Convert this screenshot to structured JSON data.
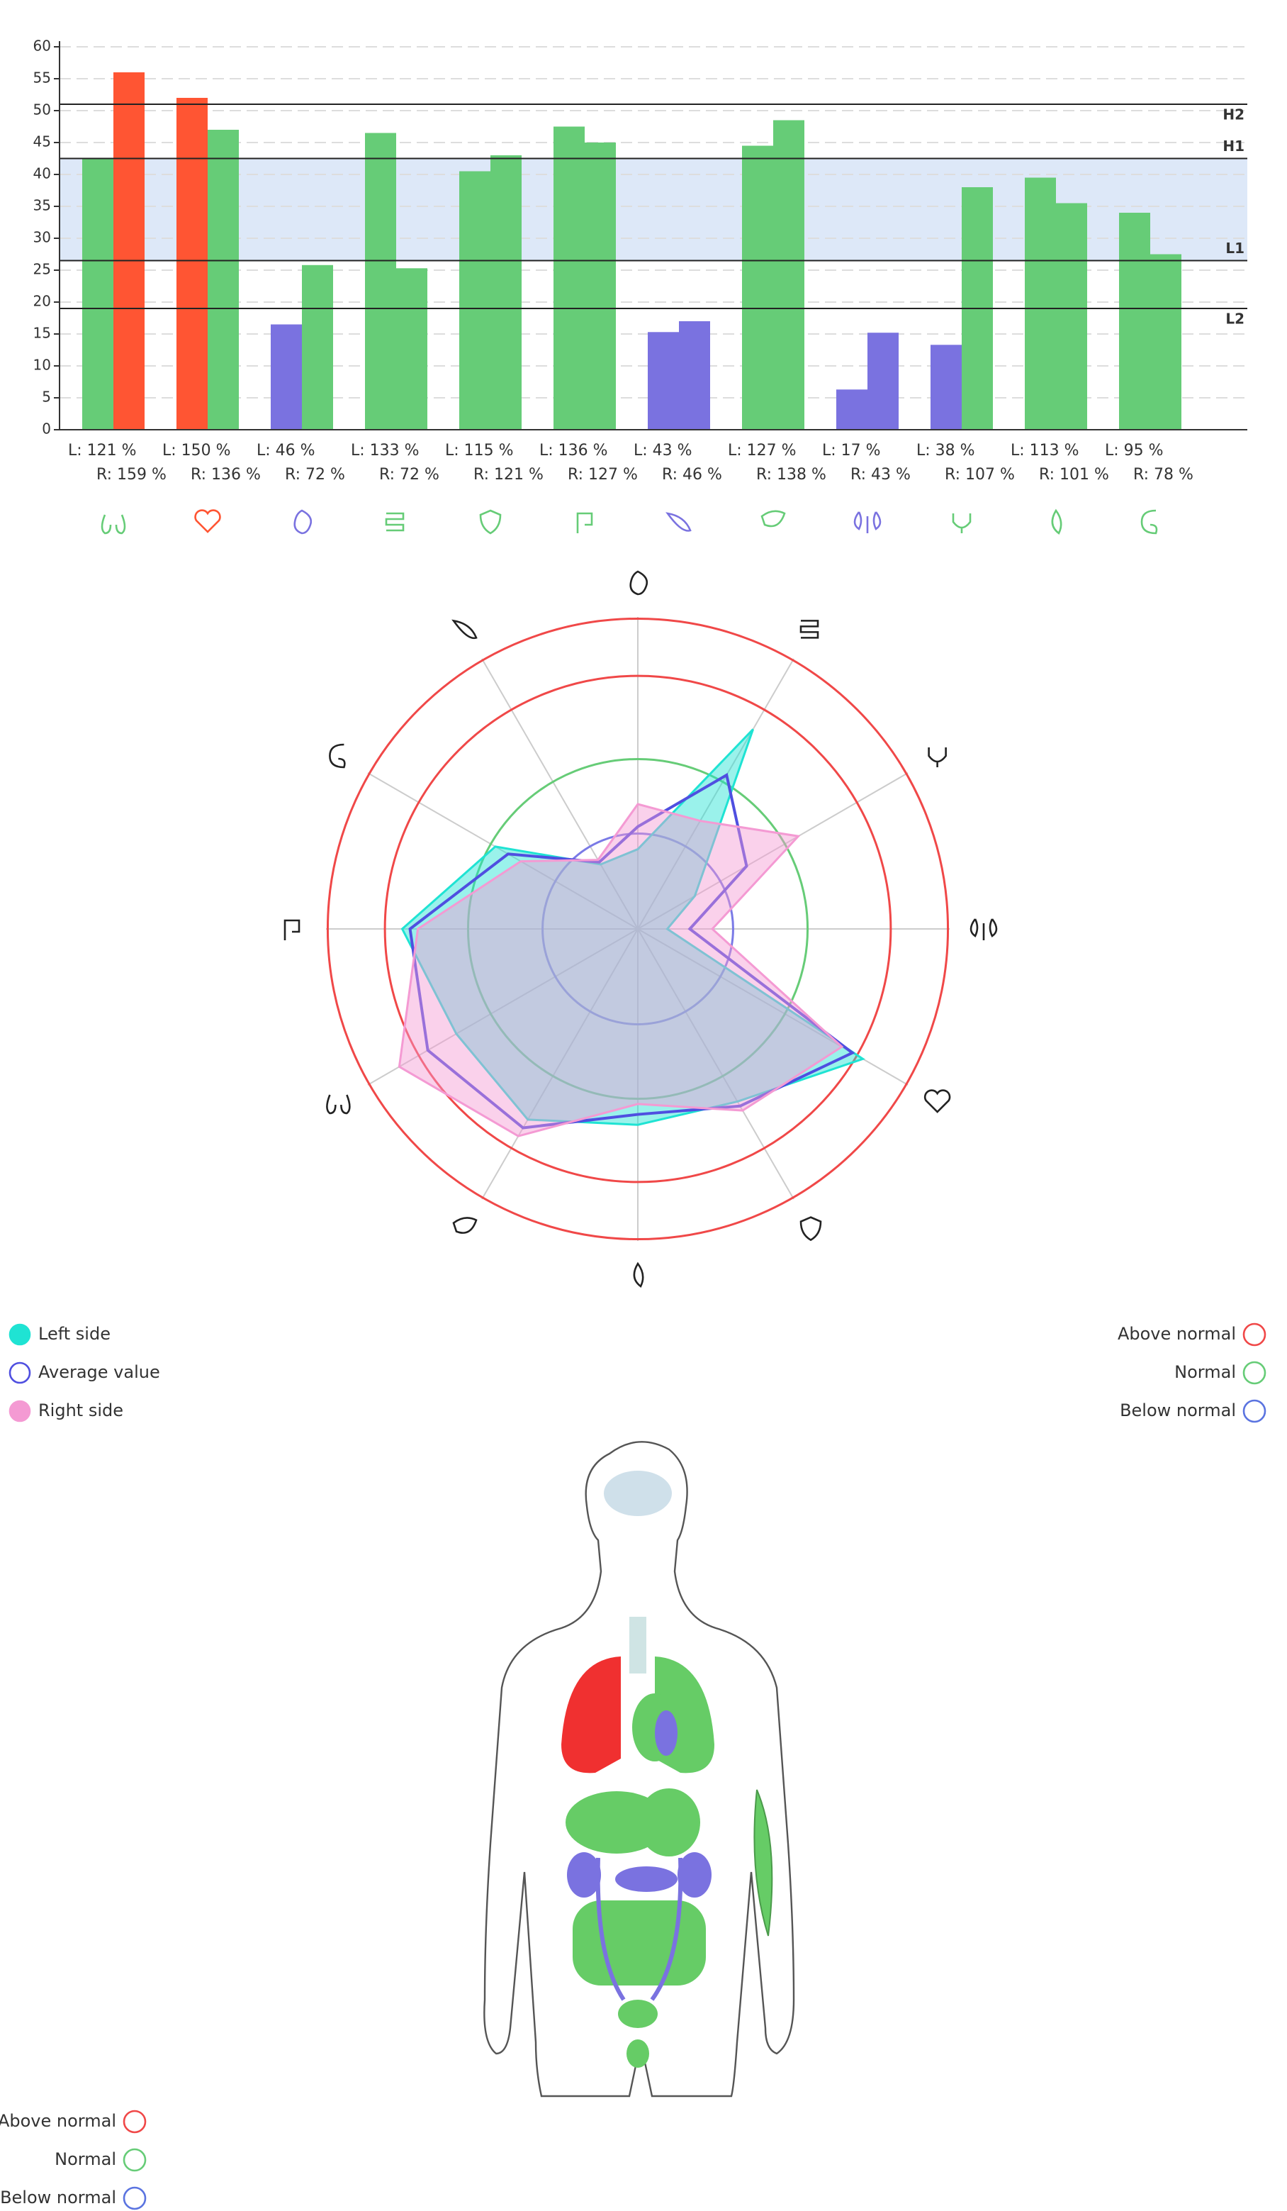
{
  "chart_data": [
    {
      "type": "bar",
      "ylim": [
        0,
        60
      ],
      "yticks": [
        0,
        5,
        10,
        15,
        20,
        25,
        30,
        35,
        40,
        45,
        50,
        55,
        60
      ],
      "grid": true,
      "series": [
        {
          "values": [
            42.5,
            52,
            16.5,
            46.5,
            40.5,
            47.5,
            15.3,
            44.5,
            6.3,
            13.3,
            39.5,
            34
          ],
          "colors": [
            "#66cc77",
            "#ff5533",
            "#7a72e0",
            "#66cc77",
            "#66cc77",
            "#66cc77",
            "#7a72e0",
            "#66cc77",
            "#7a72e0",
            "#7a72e0",
            "#66cc77",
            "#66cc77"
          ]
        },
        {
          "values": [
            56,
            47,
            25.8,
            25.3,
            43,
            45,
            17,
            48.5,
            15.2,
            38,
            35.5,
            27.5
          ],
          "colors": [
            "#ff5533",
            "#66cc77",
            "#66cc77",
            "#66cc77",
            "#66cc77",
            "#66cc77",
            "#7a72e0",
            "#66cc77",
            "#7a72e0",
            "#66cc77",
            "#66cc77",
            "#66cc77"
          ]
        }
      ],
      "reference_lines": [
        {
          "label": "H2",
          "value": 51
        },
        {
          "label": "H1",
          "value": 42.5
        },
        {
          "label": "L1",
          "value": 26.5
        },
        {
          "label": "L2",
          "value": 19
        }
      ],
      "band_color": "#dde8f8",
      "left_labels": [
        "L: 121 %",
        "L: 150 %",
        "L: 46 %",
        "L: 133 %",
        "L: 115 %",
        "L: 136 %",
        "L: 43 %",
        "L: 127 %",
        "L: 17 %",
        "L: 38 %",
        "L: 113 %",
        "L: 95 %"
      ],
      "right_labels": [
        "R: 159 %",
        "R: 136 %",
        "R: 72 %",
        "R: 72 %",
        "R: 121 %",
        "R: 127 %",
        "R: 46 %",
        "R: 138 %",
        "R: 43 %",
        "R: 107 %",
        "R: 101 %",
        "R: 78 %"
      ],
      "icon_colors": [
        "#66cc77",
        "#ff5533",
        "#7a72e0",
        "#66cc77",
        "#66cc77",
        "#66cc77",
        "#7a72e0",
        "#66cc77",
        "#7a72e0",
        "#66cc77",
        "#66cc77",
        "#66cc77"
      ]
    },
    {
      "type": "radar",
      "rlim": [
        0,
        180
      ],
      "rings": [
        {
          "value": 55,
          "color": "#7a7ae6"
        },
        {
          "value": 98,
          "color": "#66cc77"
        },
        {
          "value": 146,
          "color": "#f04848"
        },
        {
          "value": 179,
          "color": "#f04848"
        }
      ],
      "series": [
        {
          "name": "Left side",
          "color": "#1fe3d3",
          "fill": true,
          "values": [
            46,
            133,
            38,
            17,
            150,
            115,
            113,
            127,
            121,
            136,
            95,
            43
          ]
        },
        {
          "name": "Average value",
          "color": "#4f4fe0",
          "fill": false,
          "values": [
            59,
            102.5,
            72.5,
            30,
            143,
            118,
            107,
            132.5,
            140,
            131.5,
            86.5,
            44.5
          ]
        },
        {
          "name": "Right side",
          "color": "#f49ad3",
          "fill": true,
          "values": [
            72,
            72,
            107,
            43,
            136,
            121,
            101,
            138,
            159,
            127,
            78,
            46
          ]
        }
      ],
      "status_legend": [
        {
          "label": "Above normal",
          "color": "#f04848"
        },
        {
          "label": "Normal",
          "color": "#66cc77"
        },
        {
          "label": "Below normal",
          "color": "#5b74e0"
        }
      ]
    }
  ],
  "body_legend": [
    {
      "label": "Above normal",
      "color": "#f04848"
    },
    {
      "label": "Normal",
      "color": "#66cc77"
    },
    {
      "label": "Below normal",
      "color": "#5b74e0"
    }
  ]
}
